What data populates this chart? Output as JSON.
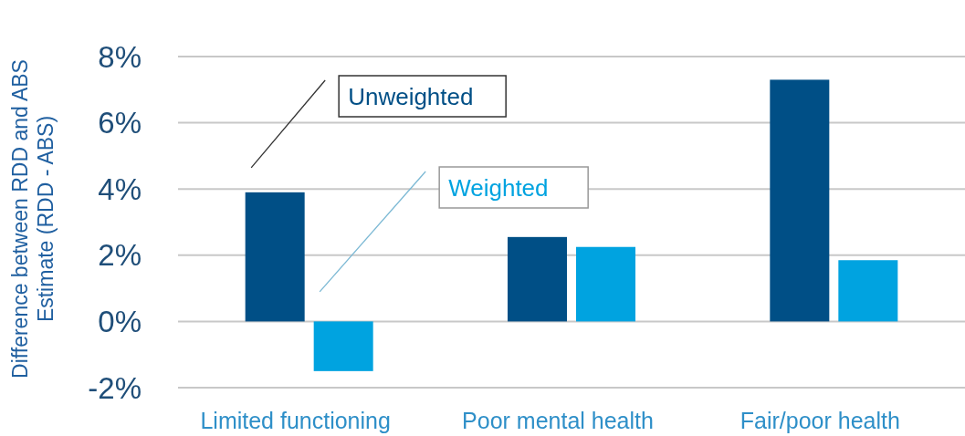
{
  "chart_data": {
    "type": "bar",
    "ylabel": "Difference between RDD and ABS Estimate (RDD - ABS)",
    "categories": [
      "Limited functioning",
      "Poor mental health",
      "Fair/poor health"
    ],
    "series": [
      {
        "name": "Unweighted",
        "color": "#004f86",
        "values": [
          3.9,
          2.55,
          7.3
        ]
      },
      {
        "name": "Weighted",
        "color": "#00a3e0",
        "values": [
          -1.5,
          2.25,
          1.85
        ]
      }
    ],
    "ylim": [
      -2,
      8
    ],
    "yticks": [
      {
        "value": -2,
        "label": "-2%"
      },
      {
        "value": 0,
        "label": "0%"
      },
      {
        "value": 2,
        "label": "2%"
      },
      {
        "value": 4,
        "label": "4%"
      },
      {
        "value": 6,
        "label": "6%"
      },
      {
        "value": 8,
        "label": "8%"
      }
    ],
    "grid": "y",
    "legend": "top left"
  }
}
